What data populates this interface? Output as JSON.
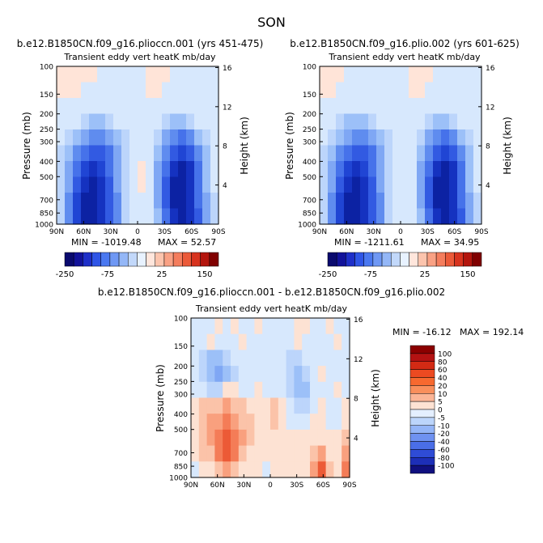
{
  "figure": {
    "season": "SON",
    "cb_row": [
      "-250",
      "-75",
      "25",
      "150"
    ],
    "cb_row_colors": [
      "#0a0a6e",
      "#12129a",
      "#1e2fc8",
      "#2f55e6",
      "#4a78f0",
      "#6f98f4",
      "#94b7f7",
      "#c2d8fa",
      "#e8f2ff",
      "#ffe6dc",
      "#fcc4ad",
      "#f9a184",
      "#f47d5d",
      "#eb5a39",
      "#d7331e",
      "#b3150d",
      "#800000"
    ],
    "cb_diff": [
      "100",
      "80",
      "60",
      "40",
      "20",
      "10",
      "5",
      "0",
      "-5",
      "-10",
      "-20",
      "-40",
      "-60",
      "-80",
      "-100"
    ],
    "cb_diff_colors": [
      "#8b0000",
      "#b41212",
      "#d32a14",
      "#ec4a21",
      "#f7692f",
      "#f98f5c",
      "#fbb596",
      "#fde2d3",
      "#e4efff",
      "#bcd5fb",
      "#94b5f7",
      "#6f92f1",
      "#4a6ee7",
      "#2f4cd6",
      "#1d2fb8",
      "#10107f"
    ]
  },
  "chart_data": [
    {
      "type": "heatmap",
      "title": "b.e12.B1850CN.f09_g16.plioccn.001 (yrs 451-475)",
      "subtitle": "Transient eddy vert heatK mb/day",
      "ylabel": "Pressure (mb)",
      "ylabel_right": "Height (km)",
      "x_ticks": [
        "90N",
        "60N",
        "30N",
        "0",
        "30S",
        "60S",
        "90S"
      ],
      "y_ticks": [
        "100",
        "150",
        "200",
        "250",
        "300",
        "400",
        "500",
        "700",
        "850",
        "1000"
      ],
      "y_right_ticks": [
        "16",
        "12",
        "8",
        "4"
      ],
      "min_label": "MIN = -1019.48",
      "max_label": "MAX = 52.57",
      "min": -1019.48,
      "max": 52.57,
      "cells": [
        [
          1,
          1,
          1,
          1,
          1,
          -1,
          -1,
          -1,
          -1,
          -1,
          -1,
          1,
          1,
          1,
          -1,
          -1,
          -1,
          -1,
          -1,
          -1
        ],
        [
          1,
          1,
          1,
          -1,
          -1,
          -1,
          -1,
          -1,
          -1,
          -1,
          -1,
          1,
          1,
          -1,
          -1,
          -1,
          -1,
          -1,
          -1,
          -1
        ],
        [
          -1,
          -1,
          -1,
          -1,
          -1,
          -1,
          -1,
          -1,
          -1,
          -1,
          -1,
          -1,
          -1,
          -1,
          -1,
          -1,
          -1,
          -1,
          -1,
          -1
        ],
        [
          -1,
          -1,
          -1,
          -2,
          -3,
          -3,
          -2,
          -1,
          -1,
          -1,
          -1,
          -1,
          -1,
          -2,
          -3,
          -3,
          -2,
          -1,
          -1,
          -1
        ],
        [
          -1,
          -2,
          -3,
          -4,
          -5,
          -5,
          -4,
          -3,
          -2,
          -1,
          -1,
          -1,
          -2,
          -4,
          -5,
          -6,
          -5,
          -3,
          -2,
          -1
        ],
        [
          -2,
          -3,
          -5,
          -6,
          -7,
          -7,
          -6,
          -4,
          -2,
          -1,
          -1,
          -1,
          -3,
          -5,
          -7,
          -8,
          -7,
          -5,
          -3,
          -1
        ],
        [
          -2,
          -4,
          -6,
          -8,
          -9,
          -8,
          -6,
          -4,
          -2,
          -1,
          1,
          -1,
          -4,
          -6,
          -9,
          -10,
          -9,
          -6,
          -3,
          -1
        ],
        [
          -2,
          -4,
          -7,
          -9,
          -10,
          -9,
          -7,
          -4,
          -2,
          -1,
          1,
          -1,
          -4,
          -7,
          -10,
          -10,
          -9,
          -6,
          -3,
          -1
        ],
        [
          -2,
          -5,
          -8,
          -10,
          -10,
          -9,
          -7,
          -5,
          -2,
          -1,
          -1,
          -1,
          -4,
          -7,
          -10,
          -10,
          -9,
          -6,
          -4,
          -2
        ],
        [
          -2,
          -5,
          -8,
          -10,
          -10,
          -9,
          -7,
          -5,
          -2,
          -1,
          -1,
          -1,
          -3,
          -6,
          -9,
          -10,
          -9,
          -7,
          -4,
          -2
        ]
      ]
    },
    {
      "type": "heatmap",
      "title": "b.e12.B1850CN.f09_g16.plio.002 (yrs 601-625)",
      "subtitle": "Transient eddy vert heatK mb/day",
      "ylabel": "Pressure (mb)",
      "ylabel_right": "Height (km)",
      "x_ticks": [
        "90N",
        "60N",
        "30N",
        "0",
        "30S",
        "60S",
        "90S"
      ],
      "y_ticks": [
        "100",
        "150",
        "200",
        "250",
        "300",
        "400",
        "500",
        "700",
        "850",
        "1000"
      ],
      "y_right_ticks": [
        "16",
        "12",
        "8",
        "4"
      ],
      "min_label": "MIN = -1211.61",
      "max_label": "MAX = 34.95",
      "min": -1211.61,
      "max": 34.95,
      "cells": [
        [
          1,
          1,
          1,
          -1,
          -1,
          -1,
          -1,
          -1,
          -1,
          -1,
          -1,
          1,
          1,
          1,
          -1,
          -1,
          -1,
          -1,
          -1,
          -1
        ],
        [
          1,
          1,
          -1,
          -1,
          -1,
          -1,
          -1,
          -1,
          -1,
          -1,
          -1,
          1,
          1,
          -1,
          -1,
          -1,
          -1,
          -1,
          -1,
          -1
        ],
        [
          -1,
          -1,
          -1,
          -1,
          -1,
          -1,
          -1,
          -1,
          -1,
          -1,
          -1,
          -1,
          -1,
          -1,
          -1,
          -1,
          -1,
          -1,
          -1,
          -1
        ],
        [
          -1,
          -1,
          -2,
          -3,
          -3,
          -3,
          -2,
          -1,
          -1,
          -1,
          -1,
          -1,
          -1,
          -2,
          -3,
          -3,
          -2,
          -1,
          -1,
          -1
        ],
        [
          -1,
          -2,
          -3,
          -4,
          -5,
          -5,
          -4,
          -3,
          -2,
          -1,
          -1,
          -1,
          -2,
          -4,
          -5,
          -6,
          -5,
          -3,
          -2,
          -1
        ],
        [
          -2,
          -3,
          -5,
          -6,
          -7,
          -7,
          -6,
          -4,
          -2,
          -1,
          -1,
          -1,
          -3,
          -5,
          -7,
          -8,
          -7,
          -5,
          -3,
          -1
        ],
        [
          -2,
          -4,
          -6,
          -8,
          -9,
          -8,
          -6,
          -4,
          -2,
          -1,
          -1,
          -1,
          -4,
          -6,
          -9,
          -10,
          -9,
          -6,
          -3,
          -1
        ],
        [
          -2,
          -4,
          -7,
          -9,
          -10,
          -9,
          -7,
          -4,
          -2,
          -1,
          -1,
          -1,
          -4,
          -7,
          -10,
          -10,
          -9,
          -6,
          -3,
          -1
        ],
        [
          -2,
          -5,
          -8,
          -10,
          -10,
          -9,
          -7,
          -5,
          -2,
          -1,
          -1,
          -1,
          -4,
          -7,
          -10,
          -10,
          -9,
          -6,
          -4,
          -2
        ],
        [
          -2,
          -5,
          -8,
          -10,
          -10,
          -9,
          -7,
          -5,
          -2,
          -1,
          -1,
          -1,
          -3,
          -6,
          -9,
          -10,
          -9,
          -7,
          -4,
          -2
        ]
      ]
    },
    {
      "type": "heatmap",
      "title": "b.e12.B1850CN.f09_g16.plioccn.001 - b.e12.B1850CN.f09_g16.plio.002",
      "subtitle": "Transient eddy vert heatK mb/day",
      "ylabel": "Pressure (mb)",
      "ylabel_right": "Height (km)",
      "x_ticks": [
        "90N",
        "60N",
        "30N",
        "0",
        "30S",
        "60S",
        "90S"
      ],
      "y_ticks": [
        "100",
        "150",
        "200",
        "250",
        "300",
        "400",
        "500",
        "700",
        "850",
        "1000"
      ],
      "y_right_ticks": [
        "16",
        "12",
        "8",
        "4"
      ],
      "min_label": "MIN = -16.12",
      "max_label": "MAX = 192.14",
      "min": -16.12,
      "max": 192.14,
      "cells": [
        [
          -1,
          -1,
          -1,
          1,
          -1,
          1,
          -1,
          -1,
          1,
          -1,
          -1,
          -1,
          -1,
          1,
          1,
          -1,
          -1,
          1,
          -1,
          -1
        ],
        [
          -1,
          -1,
          1,
          -1,
          -1,
          -1,
          1,
          -1,
          -1,
          -1,
          -1,
          -1,
          -1,
          1,
          -1,
          -1,
          -1,
          -1,
          1,
          -1
        ],
        [
          -1,
          -2,
          -3,
          -3,
          -2,
          -1,
          -1,
          -1,
          -1,
          -1,
          -1,
          -1,
          -2,
          -2,
          -1,
          -1,
          -1,
          -1,
          -1,
          -1
        ],
        [
          -1,
          -2,
          -3,
          -4,
          -3,
          -2,
          -1,
          -1,
          -1,
          -1,
          -1,
          -1,
          -2,
          -3,
          -2,
          -1,
          1,
          -1,
          -1,
          -1
        ],
        [
          -1,
          -1,
          -2,
          -2,
          1,
          1,
          -1,
          -1,
          1,
          -1,
          -1,
          -1,
          -2,
          -3,
          -3,
          -1,
          -1,
          -1,
          1,
          -1
        ],
        [
          1,
          2,
          2,
          2,
          3,
          2,
          2,
          1,
          1,
          1,
          2,
          1,
          -1,
          -2,
          -2,
          -1,
          1,
          -1,
          -1,
          1
        ],
        [
          1,
          2,
          3,
          3,
          4,
          3,
          2,
          2,
          1,
          1,
          2,
          1,
          -1,
          -1,
          -1,
          1,
          1,
          -1,
          -1,
          1
        ],
        [
          1,
          2,
          3,
          4,
          5,
          4,
          3,
          2,
          1,
          1,
          1,
          1,
          1,
          1,
          1,
          1,
          1,
          1,
          1,
          2
        ],
        [
          1,
          2,
          2,
          4,
          5,
          4,
          2,
          1,
          1,
          1,
          1,
          1,
          1,
          1,
          1,
          2,
          3,
          1,
          1,
          3
        ],
        [
          -1,
          1,
          1,
          2,
          3,
          2,
          1,
          1,
          1,
          -1,
          1,
          1,
          1,
          1,
          1,
          3,
          5,
          2,
          1,
          4
        ]
      ]
    }
  ]
}
